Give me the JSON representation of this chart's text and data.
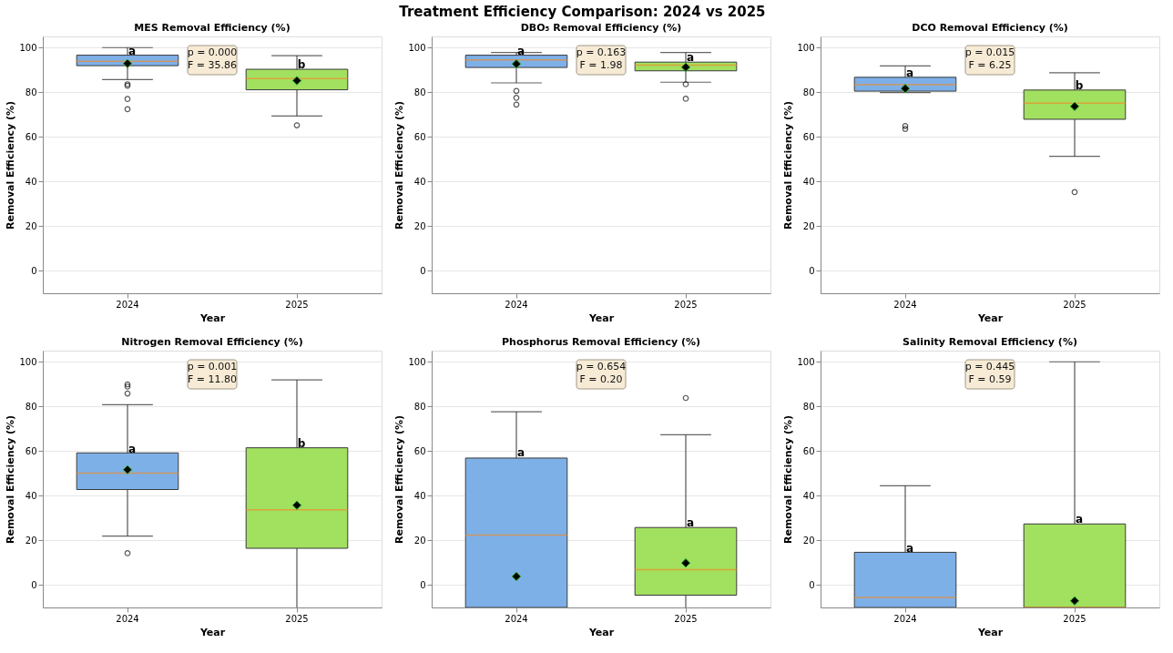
{
  "chart_data": [
    {
      "type": "box",
      "title": "MES Removal Efficiency (%)",
      "xlabel": "Year",
      "ylabel": "Removal Efficiency (%)",
      "categories": [
        "2024",
        "2025"
      ],
      "colors": [
        "#7eb0e8",
        "#a2e060"
      ],
      "ylim": [
        -10,
        105
      ],
      "yticks": [
        0,
        20,
        40,
        60,
        80,
        100
      ],
      "grid": "y",
      "boxes": [
        {
          "low": 85.7,
          "q1": 91.9,
          "median": 93.9,
          "q3": 96.6,
          "high": 100,
          "mean": 92.9,
          "outliers": [
            83.6,
            82.9,
            77,
            72.4
          ]
        },
        {
          "low": 69.4,
          "q1": 81.1,
          "median": 86.1,
          "q3": 90.3,
          "high": 96.4,
          "mean": 85.2,
          "outliers": [
            65.2
          ]
        }
      ],
      "annotations": [
        "Treatment Efficiency Comparison: 2024 vs 2025",
        "p = 0.000\nF = 35.86",
        {
          "text": "a",
          "x": "2024",
          "y": 98.2
        },
        {
          "text": "b",
          "x": "2025",
          "y": 91.9
        }
      ]
    },
    {
      "type": "box",
      "title": "DBO₅ Removal Efficiency (%)",
      "xlabel": "Year",
      "ylabel": "Removal Efficiency (%)",
      "categories": [
        "2024",
        "2025"
      ],
      "colors": [
        "#7eb0e8",
        "#a2e060"
      ],
      "ylim": [
        -10,
        105
      ],
      "yticks": [
        0,
        20,
        40,
        60,
        80,
        100
      ],
      "grid": "y",
      "boxes": [
        {
          "low": 84.2,
          "q1": 91.1,
          "median": 94.5,
          "q3": 96.6,
          "high": 97.8,
          "mean": 92.7,
          "outliers": [
            80.6,
            77.5,
            74.5
          ]
        },
        {
          "low": 84.5,
          "q1": 89.6,
          "median": 92.2,
          "q3": 93.5,
          "high": 97.8,
          "mean": 91.2,
          "outliers": [
            83.6,
            77.1
          ]
        }
      ],
      "annotations": [
        "p = 0.163\nF = 1.98",
        {
          "text": "a",
          "x": "2024",
          "y": 98.2
        },
        {
          "text": "a",
          "x": "2025",
          "y": 95.3
        }
      ]
    },
    {
      "type": "box",
      "title": "DCO Removal Efficiency (%)",
      "xlabel": "Year",
      "ylabel": "Removal Efficiency (%)",
      "categories": [
        "2024",
        "2025"
      ],
      "colors": [
        "#7eb0e8",
        "#a2e060"
      ],
      "ylim": [
        -10,
        105
      ],
      "yticks": [
        0,
        20,
        40,
        60,
        80,
        100
      ],
      "grid": "y",
      "boxes": [
        {
          "low": 79.9,
          "q1": 80.5,
          "median": 83.4,
          "q3": 86.7,
          "high": 91.8,
          "mean": 81.7,
          "outliers": [
            64.9,
            63.6
          ]
        },
        {
          "low": 51.3,
          "q1": 67.9,
          "median": 75.1,
          "q3": 81,
          "high": 88.7,
          "mean": 73.7,
          "outliers": [
            35.3
          ]
        }
      ],
      "annotations": [
        "p = 0.015\nF = 6.25",
        {
          "text": "a",
          "x": "2024",
          "y": 88.3
        },
        {
          "text": "b",
          "x": "2025",
          "y": 82.6
        }
      ]
    },
    {
      "type": "box",
      "title": "Nitrogen Removal Efficiency (%)",
      "xlabel": "Year",
      "ylabel": "Removal Efficiency (%)",
      "categories": [
        "2024",
        "2025"
      ],
      "colors": [
        "#7eb0e8",
        "#a2e060"
      ],
      "ylim": [
        -10,
        105
      ],
      "yticks": [
        0,
        20,
        40,
        60,
        80,
        100
      ],
      "grid": "y",
      "boxes": [
        {
          "low": 22,
          "q1": 42.8,
          "median": 50.1,
          "q3": 59.2,
          "high": 80.8,
          "mean": 51.7,
          "outliers": [
            89.9,
            88.9,
            85.8,
            14.3
          ]
        },
        {
          "low": -10,
          "q1": 16.5,
          "median": 33.7,
          "q3": 61.5,
          "high": 91.9,
          "mean": 35.8
        }
      ],
      "annotations": [
        "p = 0.001\nF = 11.80",
        {
          "text": "a",
          "x": "2024",
          "y": 60.6
        },
        {
          "text": "b",
          "x": "2025",
          "y": 63.2
        }
      ]
    },
    {
      "type": "box",
      "title": "Phosphorus Removal Efficiency (%)",
      "xlabel": "Year",
      "ylabel": "Removal Efficiency (%)",
      "categories": [
        "2024",
        "2025"
      ],
      "colors": [
        "#7eb0e8",
        "#a2e060"
      ],
      "ylim": [
        -10,
        105
      ],
      "yticks": [
        0,
        20,
        40,
        60,
        80,
        100
      ],
      "grid": "y",
      "boxes": [
        {
          "low": -10,
          "q1": -10,
          "median": 22.4,
          "q3": 56.9,
          "high": 77.6,
          "mean": 3.9
        },
        {
          "low": -10,
          "q1": -4.5,
          "median": 6.9,
          "q3": 25.8,
          "high": 67.3,
          "mean": 9.9,
          "outliers": [
            83.8
          ]
        }
      ],
      "annotations": [
        "p = 0.654\nF = 0.20",
        {
          "text": "a",
          "x": "2024",
          "y": 58.8
        },
        {
          "text": "a",
          "x": "2025",
          "y": 27.4
        }
      ]
    },
    {
      "type": "box",
      "title": "Salinity Removal Efficiency (%)",
      "xlabel": "Year",
      "ylabel": "Removal Efficiency (%)",
      "categories": [
        "2024",
        "2025"
      ],
      "colors": [
        "#7eb0e8",
        "#a2e060"
      ],
      "ylim": [
        -10,
        105
      ],
      "yticks": [
        0,
        20,
        40,
        60,
        80,
        100
      ],
      "grid": "y",
      "boxes": [
        {
          "low": -10,
          "q1": -10,
          "median": -5.5,
          "q3": 14.7,
          "high": 44.5
        },
        {
          "low": -10,
          "q1": -10,
          "median": -10,
          "q3": 27.4,
          "high": 100,
          "mean": -7
        }
      ],
      "annotations": [
        "p = 0.445\nF = 0.59",
        {
          "text": "a",
          "x": "2024",
          "y": 16.3
        },
        {
          "text": "a",
          "x": "2025",
          "y": 29.1
        }
      ]
    }
  ]
}
